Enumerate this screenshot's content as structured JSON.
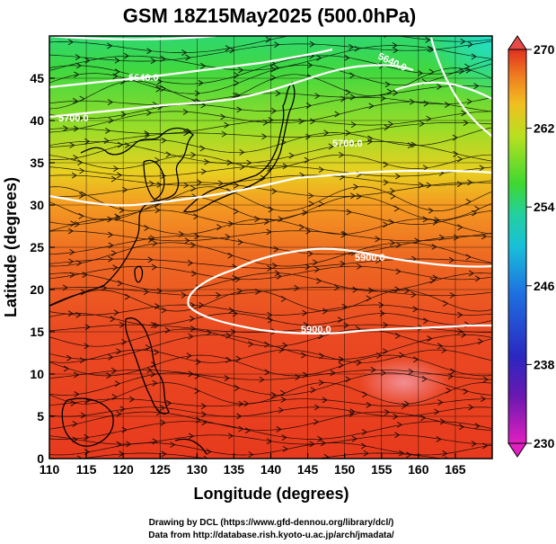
{
  "title": "GSM 18Z15May2025 (500.0hPa)",
  "xlabel": "Longitude (degrees)",
  "ylabel": "Latitude  (degrees)",
  "x_ticks": [
    110,
    115,
    120,
    125,
    130,
    135,
    140,
    145,
    150,
    155,
    160,
    165
  ],
  "y_ticks": [
    0,
    5,
    10,
    15,
    20,
    25,
    30,
    35,
    40,
    45
  ],
  "colorbar": {
    "ticks": [
      230,
      238,
      246,
      254,
      262,
      270
    ],
    "min": 230,
    "max": 270,
    "colors": [
      "#e020c0",
      "#3a1aa0",
      "#1e4fd8",
      "#1fb0e8",
      "#22d0a0",
      "#3ed830",
      "#b8e020",
      "#f0c020",
      "#f08020",
      "#e83a20",
      "#d02018"
    ]
  },
  "contours": [
    {
      "label": "5900.0"
    },
    {
      "label": "5900.0"
    },
    {
      "label": "5700.0"
    },
    {
      "label": "5640.0"
    },
    {
      "label": "5700.0"
    },
    {
      "label": "5640.0"
    }
  ],
  "credits": {
    "line1": "Drawing by DCL (https://www.gfd-dennou.org/library/dcl/)",
    "line2": "Data from http://database.rish.kyoto-u.ac.jp/arch/jmadata/"
  },
  "chart_data": {
    "type": "heatmap",
    "title": "GSM 18Z15May2025 (500.0hPa)",
    "xlabel": "Longitude (degrees)",
    "ylabel": "Latitude  (degrees)",
    "xlim": [
      110,
      170
    ],
    "ylim": [
      0,
      50
    ],
    "color_scale": {
      "min": 230,
      "max": 270,
      "ticks": [
        230,
        238,
        246,
        254,
        262,
        270
      ]
    },
    "overlays": [
      "wind streamlines",
      "geopotential height contours (white)",
      "coastlines"
    ],
    "contour_levels": [
      5640.0,
      5700.0,
      5900.0
    ]
  }
}
